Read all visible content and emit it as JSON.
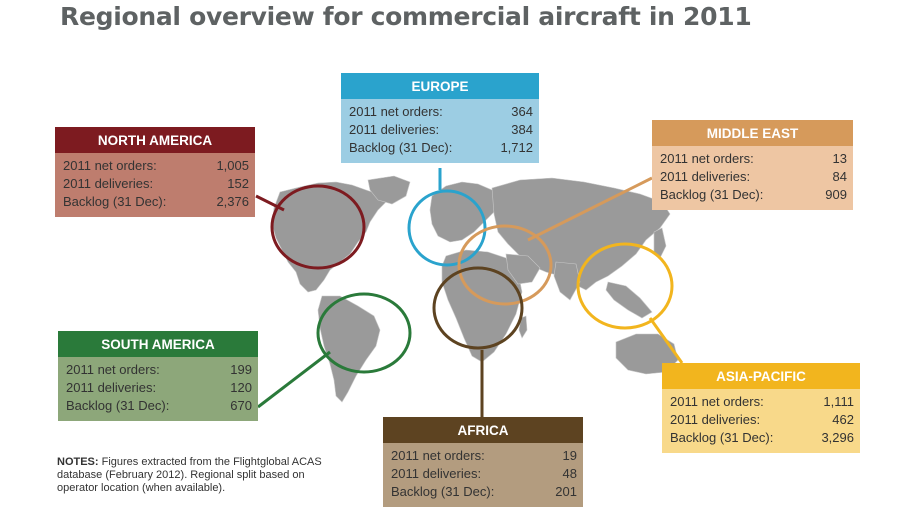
{
  "title": "Regional overview for commercial aircraft in 2011",
  "colors": {
    "north_america": "#7d1b20",
    "europe": "#2aa3cd",
    "middle_east": "#d69a5b",
    "south_america": "#2a7a3a",
    "africa": "#5d4321",
    "asia_pacific": "#f2b51e",
    "land": "#9a9a9a"
  },
  "regions": {
    "north_america": {
      "name": "NORTH AMERICA",
      "rows": [
        {
          "label": "2011 net orders:",
          "value": "1,005"
        },
        {
          "label": "2011 deliveries:",
          "value": "152"
        },
        {
          "label": "Backlog (31 Dec):",
          "value": "2,376"
        }
      ]
    },
    "europe": {
      "name": "EUROPE",
      "rows": [
        {
          "label": "2011 net orders:",
          "value": "364"
        },
        {
          "label": "2011 deliveries:",
          "value": "384"
        },
        {
          "label": "Backlog (31 Dec):",
          "value": "1,712"
        }
      ]
    },
    "middle_east": {
      "name": "MIDDLE EAST",
      "rows": [
        {
          "label": "2011 net orders:",
          "value": "13"
        },
        {
          "label": "2011 deliveries:",
          "value": "84"
        },
        {
          "label": "Backlog (31 Dec):",
          "value": "909"
        }
      ]
    },
    "south_america": {
      "name": "SOUTH AMERICA",
      "rows": [
        {
          "label": "2011 net orders:",
          "value": "199"
        },
        {
          "label": "2011 deliveries:",
          "value": "120"
        },
        {
          "label": "Backlog (31 Dec):",
          "value": "670"
        }
      ]
    },
    "africa": {
      "name": "AFRICA",
      "rows": [
        {
          "label": "2011 net orders:",
          "value": "19"
        },
        {
          "label": "2011 deliveries:",
          "value": "48"
        },
        {
          "label": "Backlog (31 Dec):",
          "value": "201"
        }
      ]
    },
    "asia_pacific": {
      "name": "ASIA-PACIFIC",
      "rows": [
        {
          "label": "2011 net orders:",
          "value": "1,111"
        },
        {
          "label": "2011 deliveries:",
          "value": "462"
        },
        {
          "label": "Backlog (31 Dec):",
          "value": "3,296"
        }
      ]
    }
  },
  "notes": {
    "label": "NOTES:",
    "text": "Figures extracted from the Flightglobal ACAS database (February 2012). Regional split based on operator location (when available)."
  }
}
